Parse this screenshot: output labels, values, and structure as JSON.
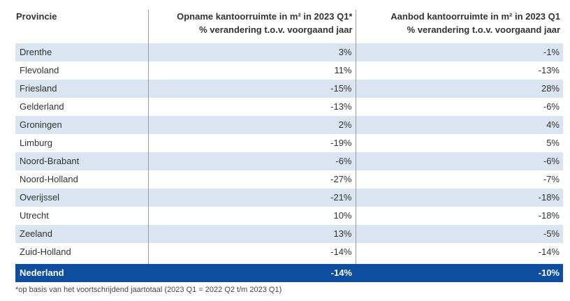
{
  "table": {
    "headers": {
      "province": "Provincie",
      "col1_line1": "Opname kantoorruimte in m² in 2023 Q1*",
      "col1_line2": "% verandering t.o.v. voorgaand jaar",
      "col2_line1": "Aanbod kantoorruimte in m² in 2023 Q1",
      "col2_line2": "% verandering t.o.v. voorgaand jaar"
    },
    "rows": [
      {
        "name": "Drenthe",
        "opname": "3%",
        "aanbod": "-1%"
      },
      {
        "name": "Flevoland",
        "opname": "11%",
        "aanbod": "-13%"
      },
      {
        "name": "Friesland",
        "opname": "-15%",
        "aanbod": "28%"
      },
      {
        "name": "Gelderland",
        "opname": "-13%",
        "aanbod": "-6%"
      },
      {
        "name": "Groningen",
        "opname": "2%",
        "aanbod": "4%"
      },
      {
        "name": "Limburg",
        "opname": "-19%",
        "aanbod": "5%"
      },
      {
        "name": "Noord-Brabant",
        "opname": "-6%",
        "aanbod": "-6%"
      },
      {
        "name": "Noord-Holland",
        "opname": "-27%",
        "aanbod": "-7%"
      },
      {
        "name": "Overijssel",
        "opname": "-21%",
        "aanbod": "-18%"
      },
      {
        "name": "Utrecht",
        "opname": "10%",
        "aanbod": "-18%"
      },
      {
        "name": "Zeeland",
        "opname": "13%",
        "aanbod": "-5%"
      },
      {
        "name": "Zuid-Holland",
        "opname": "-14%",
        "aanbod": "-14%"
      }
    ],
    "total": {
      "name": "Nederland",
      "opname": "-14%",
      "aanbod": "-10%"
    }
  },
  "footnote": "*op basis van het voortschrijdend jaartotaal (2023 Q1 = 2022 Q2 t/m 2023 Q1)",
  "colors": {
    "stripe": "#dbe5f1",
    "total_bg": "#0d4e9e"
  }
}
